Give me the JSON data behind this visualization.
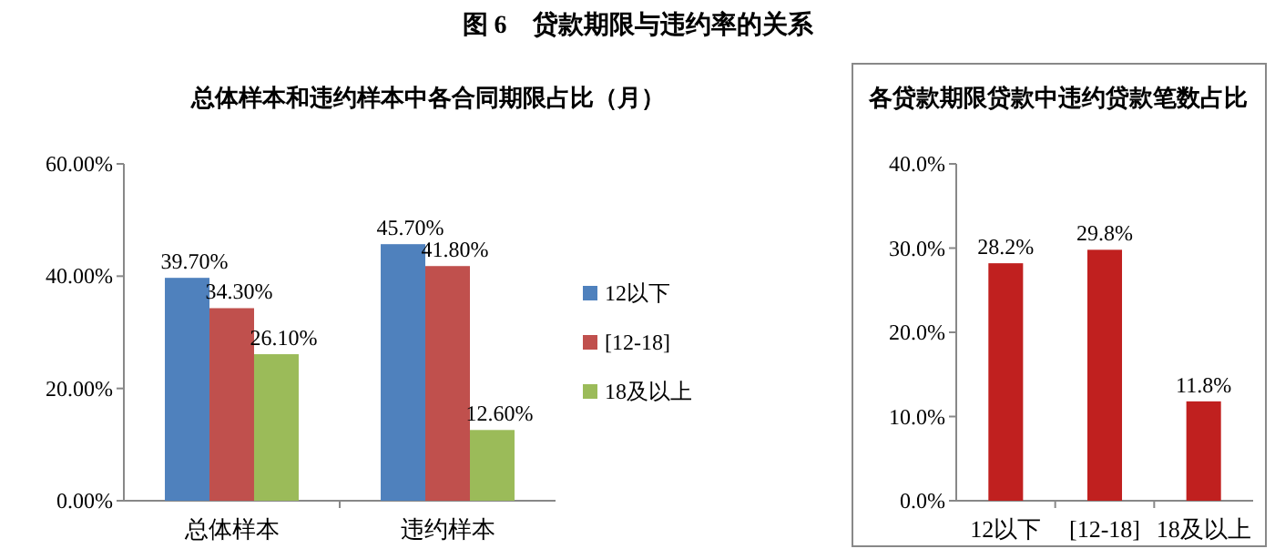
{
  "chart_data": [
    {
      "type": "bar",
      "title": "图 6　贷款期限与违约率的关系",
      "subtitle": "总体样本和违约样本中各合同期限占比（月）",
      "categories": [
        "总体样本",
        "违约样本"
      ],
      "series": [
        {
          "name": "12以下",
          "color": "#4f81bd",
          "values": [
            39.7,
            45.7
          ],
          "value_labels": [
            "39.70%",
            "45.70%"
          ]
        },
        {
          "name": "[12-18]",
          "color": "#c0504d",
          "values": [
            34.3,
            41.8
          ],
          "value_labels": [
            "34.30%",
            "41.80%"
          ]
        },
        {
          "name": "18及以上",
          "color": "#9bbb59",
          "values": [
            26.1,
            12.6
          ],
          "value_labels": [
            "26.10%",
            "12.60%"
          ]
        }
      ],
      "ylim": [
        0,
        60
      ],
      "yticks": [
        {
          "value": 0,
          "label": "0.00%"
        },
        {
          "value": 20,
          "label": "20.00%"
        },
        {
          "value": 40,
          "label": "40.00%"
        },
        {
          "value": 60,
          "label": "60.00%"
        }
      ],
      "legend": "right",
      "grid": false
    },
    {
      "type": "bar",
      "title": "各贷款期限贷款中违约贷款笔数占比",
      "categories": [
        "12以下",
        "[12-18]",
        "18及以上"
      ],
      "values": [
        28.2,
        29.8,
        11.8
      ],
      "value_labels": [
        "28.2%",
        "29.8%",
        "11.8%"
      ],
      "color": "#c0201f",
      "ylim": [
        0,
        40
      ],
      "yticks": [
        {
          "value": 0,
          "label": "0.0%"
        },
        {
          "value": 10,
          "label": "10.0%"
        },
        {
          "value": 20,
          "label": "20.0%"
        },
        {
          "value": 30,
          "label": "30.0%"
        },
        {
          "value": 40,
          "label": "40.0%"
        }
      ],
      "grid": false
    }
  ]
}
